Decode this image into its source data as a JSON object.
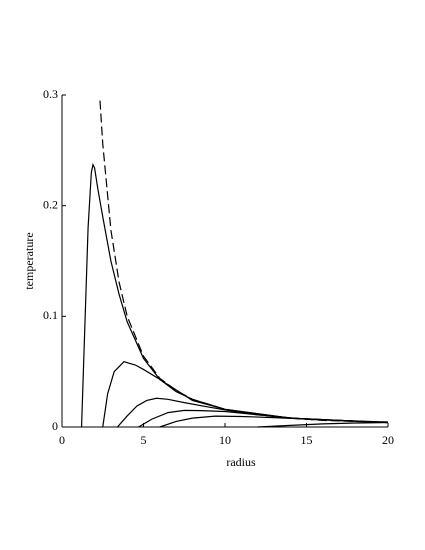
{
  "chart_data": {
    "type": "line",
    "xlabel": "radius",
    "ylabel": "temperature",
    "xlim": [
      0,
      20
    ],
    "ylim": [
      0,
      0.3
    ],
    "xticks": [
      0,
      5,
      10,
      15,
      20
    ],
    "yticks": [
      0,
      0.1,
      0.2,
      0.3
    ],
    "series": [
      {
        "color": "#000000",
        "dashed": true,
        "x": [
          2.33,
          2.5,
          3,
          3.5,
          4,
          5,
          6,
          7,
          8,
          10,
          12,
          14,
          16,
          18,
          20
        ],
        "values": [
          0.295,
          0.256,
          0.178,
          0.131,
          0.1,
          0.064,
          0.044,
          0.033,
          0.025,
          0.016,
          0.011,
          0.008,
          0.006,
          0.005,
          0.004
        ]
      },
      {
        "color": "#000000",
        "x": [
          1.2,
          1.4,
          1.6,
          1.8,
          1.9,
          2.0,
          2.2,
          2.5,
          3,
          3.5,
          4,
          5,
          6,
          8,
          10,
          14,
          20
        ],
        "values": [
          0,
          0.09,
          0.18,
          0.23,
          0.237,
          0.234,
          0.215,
          0.19,
          0.15,
          0.12,
          0.095,
          0.062,
          0.043,
          0.024,
          0.016,
          0.008,
          0.004
        ]
      },
      {
        "color": "#000000",
        "x": [
          2.5,
          2.8,
          3.2,
          3.8,
          4.5,
          5,
          6,
          7,
          8,
          10,
          14,
          20
        ],
        "values": [
          0,
          0.03,
          0.05,
          0.059,
          0.056,
          0.052,
          0.043,
          0.032,
          0.025,
          0.016,
          0.008,
          0.004
        ]
      },
      {
        "color": "#000000",
        "x": [
          3.4,
          4,
          4.6,
          5.2,
          5.8,
          6.5,
          7.5,
          9,
          11,
          14,
          20
        ],
        "values": [
          0,
          0.01,
          0.019,
          0.024,
          0.026,
          0.025,
          0.022,
          0.018,
          0.013,
          0.008,
          0.004
        ]
      },
      {
        "color": "#000000",
        "x": [
          4.7,
          5.5,
          6.5,
          7.5,
          8.5,
          10,
          12,
          15,
          20
        ],
        "values": [
          0,
          0.007,
          0.013,
          0.015,
          0.0148,
          0.014,
          0.011,
          0.007,
          0.004
        ]
      },
      {
        "color": "#000000",
        "x": [
          6,
          7,
          8,
          9.4,
          11,
          13,
          16,
          20
        ],
        "values": [
          0,
          0.005,
          0.008,
          0.0098,
          0.0095,
          0.0085,
          0.0065,
          0.0045
        ]
      },
      {
        "color": "#000000",
        "x": [
          12,
          14,
          16,
          18,
          20
        ],
        "values": [
          0,
          0.0015,
          0.0028,
          0.0036,
          0.004
        ]
      }
    ]
  }
}
